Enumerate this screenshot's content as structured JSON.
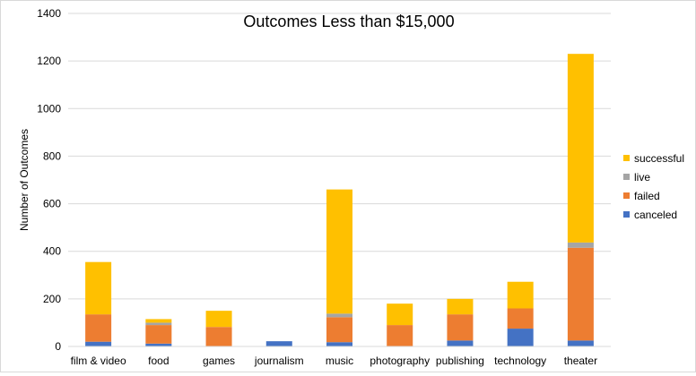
{
  "chart_data": {
    "type": "bar",
    "stacked": true,
    "title": "Outcomes Less than $15,000",
    "xlabel": "",
    "ylabel": "Number of Outcomes",
    "ylim": [
      0,
      1400
    ],
    "yticks": [
      0,
      200,
      400,
      600,
      800,
      1000,
      1200,
      1400
    ],
    "grid": true,
    "legend_position": "right",
    "categories": [
      "film & video",
      "food",
      "games",
      "journalism",
      "music",
      "photography",
      "publishing",
      "technology",
      "theater"
    ],
    "series": [
      {
        "name": "canceled",
        "color": "#4472c4",
        "values": [
          20,
          12,
          0,
          22,
          18,
          0,
          25,
          75,
          25
        ]
      },
      {
        "name": "failed",
        "color": "#ed7d31",
        "values": [
          115,
          78,
          82,
          0,
          105,
          90,
          110,
          85,
          390
        ]
      },
      {
        "name": "live",
        "color": "#a5a5a5",
        "values": [
          0,
          10,
          0,
          0,
          15,
          0,
          0,
          0,
          22
        ]
      },
      {
        "name": "successful",
        "color": "#ffc000",
        "values": [
          220,
          15,
          68,
          0,
          522,
          90,
          65,
          112,
          793
        ]
      }
    ],
    "legend_order": [
      "successful",
      "live",
      "failed",
      "canceled"
    ]
  }
}
